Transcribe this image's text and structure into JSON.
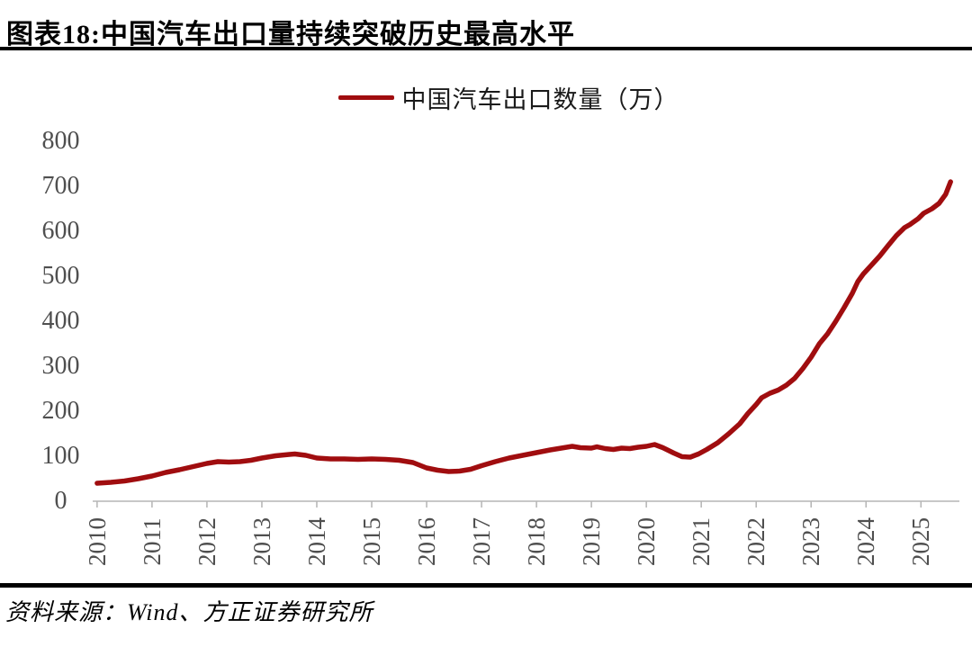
{
  "header": {
    "title": "图表18:中国汽车出口量持续突破历史最高水平"
  },
  "legend": {
    "label": "中国汽车出口数量（万）"
  },
  "footer": {
    "source": "资料来源：Wind、方正证券研究所"
  },
  "colors": {
    "line": "#A00D0F",
    "axis_line": "#C8C8C8",
    "tick_mark": "#B5B5B5",
    "tick_label": "#4F4F4F",
    "rule": "#000000",
    "background": "#FFFFFF"
  },
  "chart_data": {
    "type": "line",
    "title": "中国汽车出口数量（万）",
    "xlabel": "",
    "ylabel": "",
    "grid": false,
    "legend_position": "top-center",
    "xlim": [
      2009.92,
      2025.7
    ],
    "ylim": [
      0,
      800
    ],
    "x_ticks": [
      "2010",
      "2011",
      "2012",
      "2013",
      "2014",
      "2015",
      "2016",
      "2017",
      "2018",
      "2019",
      "2020",
      "2021",
      "2022",
      "2023",
      "2024",
      "2025"
    ],
    "x_tick_values": [
      2010,
      2011,
      2012,
      2013,
      2014,
      2015,
      2016,
      2017,
      2018,
      2019,
      2020,
      2021,
      2022,
      2023,
      2024,
      2025
    ],
    "y_ticks": [
      0,
      100,
      200,
      300,
      400,
      500,
      600,
      700,
      800
    ],
    "series": [
      {
        "name": "中国汽车出口数量（万）",
        "color": "#A00D0F",
        "points": [
          [
            2010.0,
            40
          ],
          [
            2010.25,
            42
          ],
          [
            2010.5,
            45
          ],
          [
            2010.75,
            50
          ],
          [
            2011.0,
            56
          ],
          [
            2011.25,
            64
          ],
          [
            2011.5,
            70
          ],
          [
            2011.75,
            77
          ],
          [
            2012.0,
            84
          ],
          [
            2012.2,
            88
          ],
          [
            2012.4,
            87
          ],
          [
            2012.6,
            88
          ],
          [
            2012.8,
            91
          ],
          [
            2013.0,
            96
          ],
          [
            2013.25,
            101
          ],
          [
            2013.5,
            104
          ],
          [
            2013.6,
            105
          ],
          [
            2013.8,
            102
          ],
          [
            2014.0,
            96
          ],
          [
            2014.25,
            94
          ],
          [
            2014.5,
            94
          ],
          [
            2014.75,
            93
          ],
          [
            2015.0,
            94
          ],
          [
            2015.25,
            93
          ],
          [
            2015.5,
            91
          ],
          [
            2015.75,
            86
          ],
          [
            2016.0,
            74
          ],
          [
            2016.2,
            69
          ],
          [
            2016.4,
            66
          ],
          [
            2016.6,
            67
          ],
          [
            2016.8,
            71
          ],
          [
            2017.0,
            79
          ],
          [
            2017.25,
            88
          ],
          [
            2017.5,
            96
          ],
          [
            2017.75,
            102
          ],
          [
            2018.0,
            108
          ],
          [
            2018.25,
            114
          ],
          [
            2018.5,
            119
          ],
          [
            2018.65,
            122
          ],
          [
            2018.8,
            119
          ],
          [
            2019.0,
            118
          ],
          [
            2019.1,
            121
          ],
          [
            2019.25,
            117
          ],
          [
            2019.4,
            115
          ],
          [
            2019.55,
            118
          ],
          [
            2019.7,
            117
          ],
          [
            2019.85,
            120
          ],
          [
            2020.0,
            122
          ],
          [
            2020.15,
            126
          ],
          [
            2020.3,
            119
          ],
          [
            2020.5,
            107
          ],
          [
            2020.65,
            99
          ],
          [
            2020.8,
            98
          ],
          [
            2020.95,
            105
          ],
          [
            2021.1,
            115
          ],
          [
            2021.3,
            130
          ],
          [
            2021.5,
            150
          ],
          [
            2021.7,
            172
          ],
          [
            2021.85,
            195
          ],
          [
            2022.0,
            215
          ],
          [
            2022.1,
            230
          ],
          [
            2022.25,
            240
          ],
          [
            2022.4,
            247
          ],
          [
            2022.55,
            258
          ],
          [
            2022.7,
            273
          ],
          [
            2022.85,
            295
          ],
          [
            2023.0,
            320
          ],
          [
            2023.15,
            350
          ],
          [
            2023.3,
            372
          ],
          [
            2023.45,
            400
          ],
          [
            2023.6,
            430
          ],
          [
            2023.75,
            462
          ],
          [
            2023.85,
            488
          ],
          [
            2023.95,
            505
          ],
          [
            2024.1,
            525
          ],
          [
            2024.25,
            545
          ],
          [
            2024.4,
            568
          ],
          [
            2024.55,
            590
          ],
          [
            2024.7,
            608
          ],
          [
            2024.8,
            615
          ],
          [
            2024.95,
            628
          ],
          [
            2025.05,
            640
          ],
          [
            2025.2,
            650
          ],
          [
            2025.33,
            662
          ],
          [
            2025.45,
            682
          ],
          [
            2025.54,
            710
          ]
        ]
      }
    ]
  }
}
